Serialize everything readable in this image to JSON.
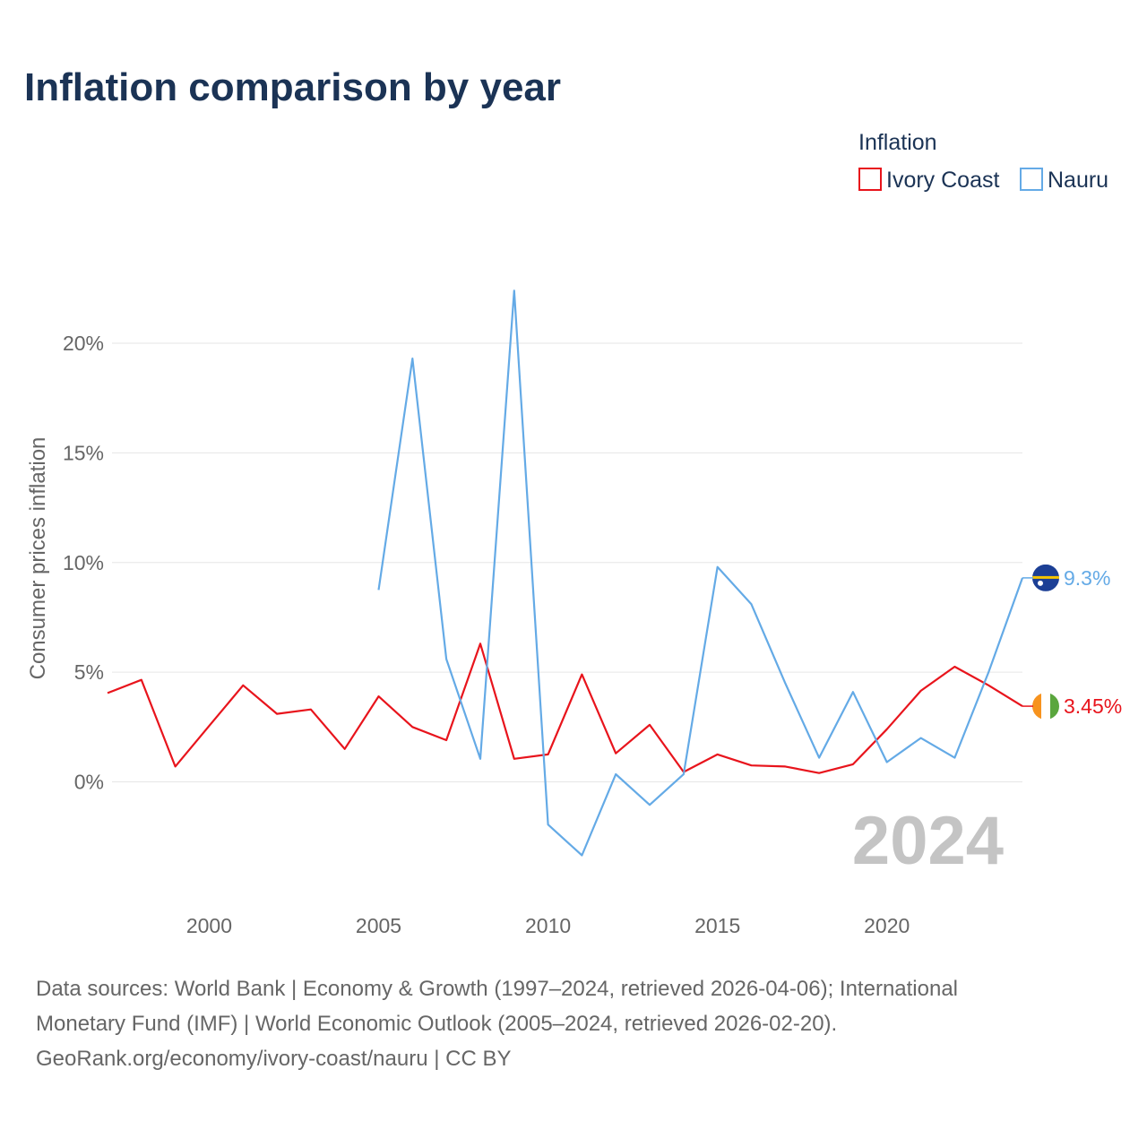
{
  "chart_data": {
    "type": "line",
    "title": "Inflation comparison by year",
    "legend_title": "Inflation",
    "legend_position": "top-right",
    "ylabel": "Consumer prices inflation",
    "xlabel": "",
    "xlim": [
      1997,
      2024
    ],
    "ylim": [
      -4.8,
      23.8
    ],
    "x_ticks": [
      2000,
      2005,
      2010,
      2015,
      2020
    ],
    "y_ticks": [
      0,
      5,
      10,
      15,
      20
    ],
    "y_tick_labels": [
      "0%",
      "5%",
      "10%",
      "15%",
      "20%"
    ],
    "grid": true,
    "watermark": "2024",
    "series": [
      {
        "name": "Ivory Coast",
        "color": "#e8141c",
        "end_label": "3.45%",
        "flag": "ivory-coast-flag",
        "x": [
          1997,
          1998,
          1999,
          2000,
          2001,
          2002,
          2003,
          2004,
          2005,
          2006,
          2007,
          2008,
          2009,
          2010,
          2011,
          2012,
          2013,
          2014,
          2015,
          2016,
          2017,
          2018,
          2019,
          2020,
          2021,
          2022,
          2023,
          2024
        ],
        "values": [
          4.05,
          4.65,
          0.7,
          2.55,
          4.4,
          3.1,
          3.3,
          1.5,
          3.9,
          2.5,
          1.9,
          6.3,
          1.05,
          1.25,
          4.9,
          1.3,
          2.6,
          0.45,
          1.25,
          0.75,
          0.7,
          0.4,
          0.8,
          2.4,
          4.15,
          5.25,
          4.4,
          3.45
        ]
      },
      {
        "name": "Nauru",
        "color": "#64aae6",
        "end_label": "9.3%",
        "flag": "nauru-flag",
        "x": [
          2005,
          2006,
          2007,
          2008,
          2009,
          2010,
          2011,
          2012,
          2013,
          2014,
          2015,
          2016,
          2017,
          2018,
          2019,
          2020,
          2021,
          2022,
          2023,
          2024
        ],
        "values": [
          8.75,
          19.3,
          5.6,
          1.05,
          22.4,
          -1.95,
          -3.35,
          0.35,
          -1.05,
          0.35,
          9.8,
          8.1,
          4.5,
          1.1,
          4.1,
          0.9,
          2.0,
          1.1,
          5.0,
          9.3
        ]
      }
    ]
  },
  "footer": {
    "line1": "Data sources: World Bank | Economy & Growth (1997–2024, retrieved 2026-04-06); International",
    "line2": "Monetary Fund (IMF) | World Economic Outlook (2005–2024, retrieved 2026-02-20).",
    "line3": "GeoRank.org/economy/ivory-coast/nauru | CC BY"
  }
}
